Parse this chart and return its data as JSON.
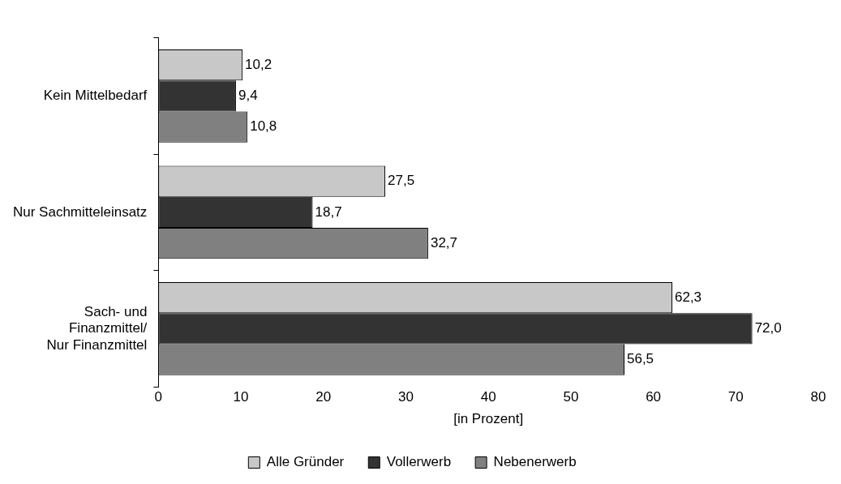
{
  "chart_data": {
    "type": "bar",
    "orientation": "horizontal",
    "categories": [
      "Kein Mittelbedarf",
      "Nur Sachmitteleinsatz",
      "Sach- und Finanzmittel/ Nur Finanzmittel"
    ],
    "series": [
      {
        "name": "Alle Gründer",
        "color": "#c8c8c8",
        "values": [
          10.2,
          27.5,
          62.3
        ],
        "value_labels": [
          "10,2",
          "27,5",
          "62,3"
        ]
      },
      {
        "name": "Vollerwerb",
        "color": "#333333",
        "values": [
          9.4,
          18.7,
          72.0
        ],
        "value_labels": [
          "9,4",
          "18,7",
          "72,0"
        ]
      },
      {
        "name": "Nebenerwerb",
        "color": "#808080",
        "values": [
          10.8,
          32.7,
          56.5
        ],
        "value_labels": [
          "10,8",
          "32,7",
          "56,5"
        ]
      }
    ],
    "xlabel": "[in Prozent]",
    "xlim": [
      0,
      80
    ],
    "xticks": [
      0,
      10,
      20,
      30,
      40,
      50,
      60,
      70,
      80
    ],
    "grid": false,
    "legend": "bottom"
  }
}
